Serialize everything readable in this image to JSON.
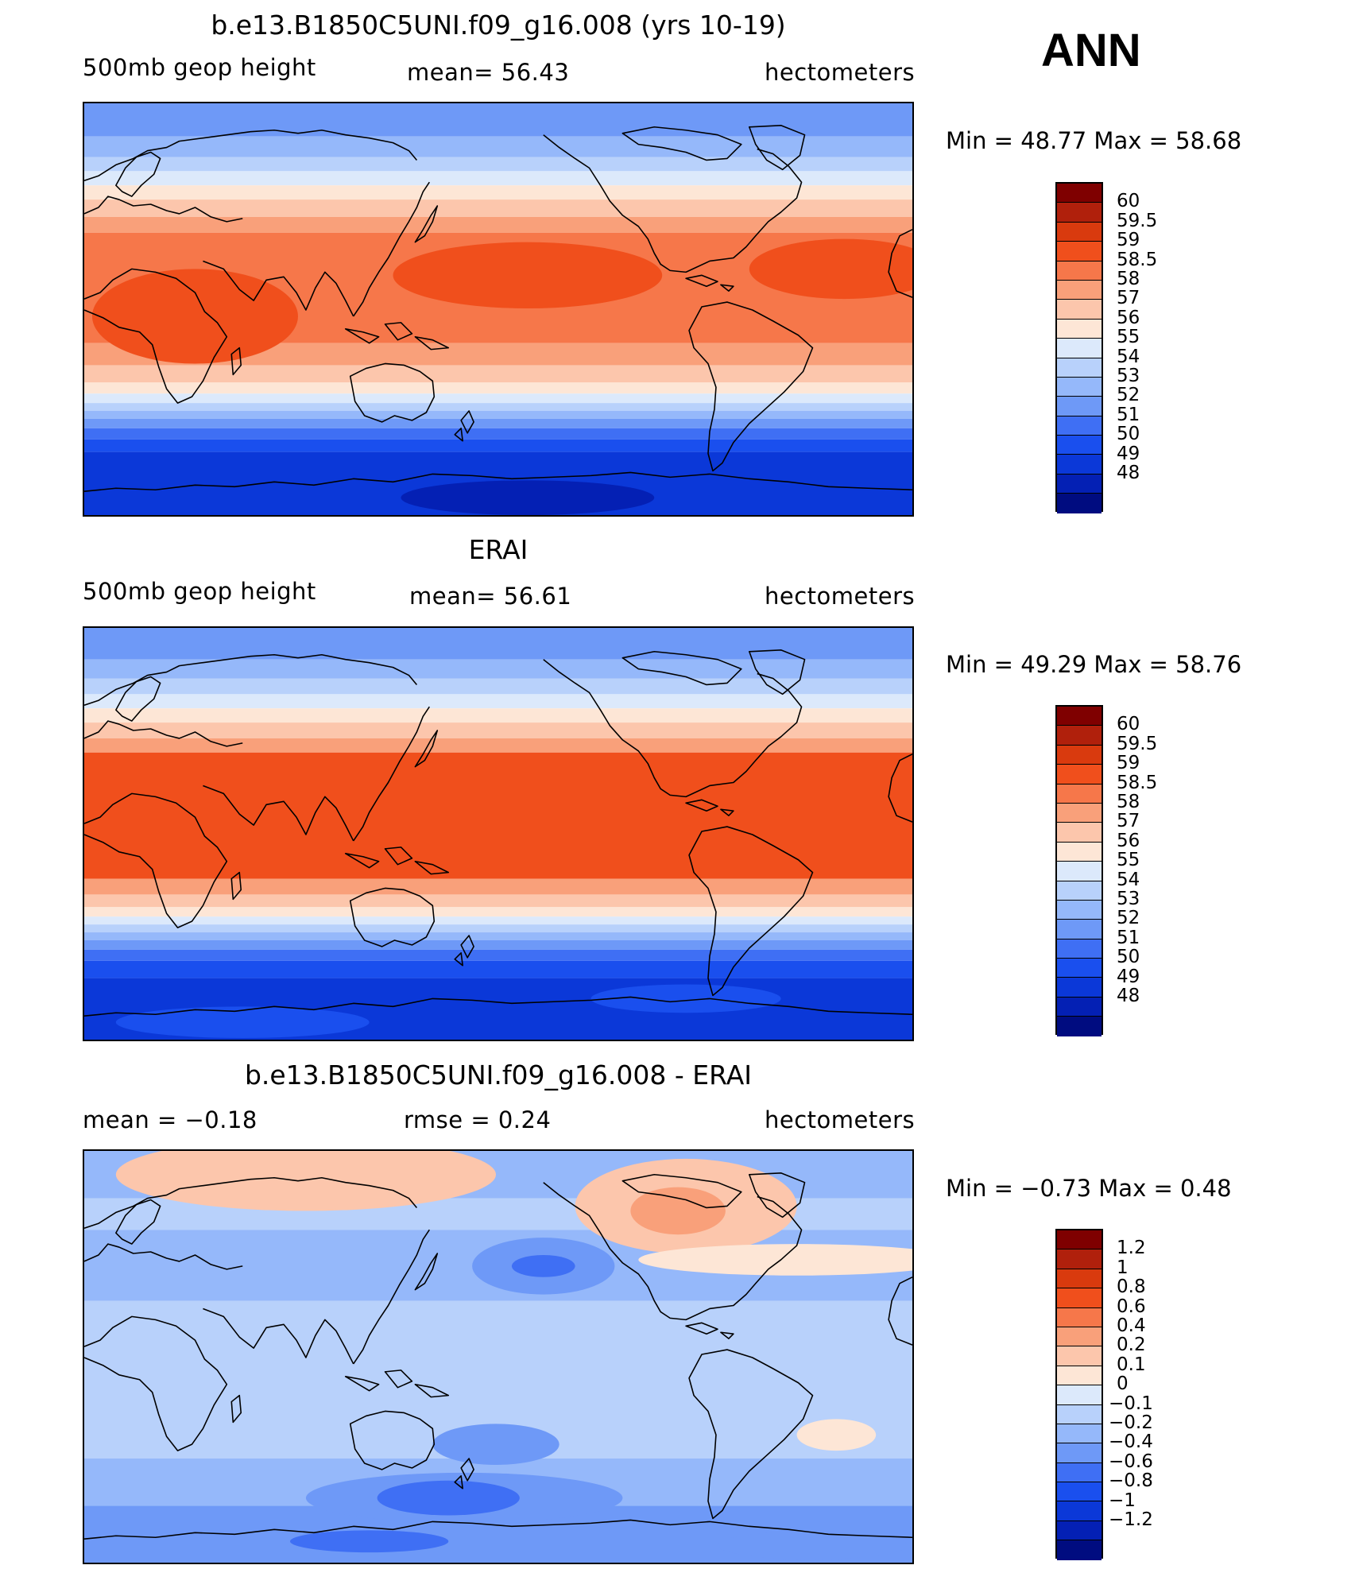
{
  "season": "ANN",
  "panels": [
    {
      "title": "b.e13.B1850C5UNI.f09_g16.008 (yrs 10-19)",
      "left_label": "500mb geop height",
      "center_label": "mean=   56.43",
      "units": "hectometers",
      "minmax": "Min =    48.77  Max =    58.68",
      "fill": "model"
    },
    {
      "title": "ERAI",
      "left_label": "500mb geop height",
      "center_label": "mean=   56.61",
      "units": "hectometers",
      "minmax": "Min =    49.29  Max =    58.76",
      "fill": "obs"
    },
    {
      "title": "b.e13.B1850C5UNI.f09_g16.008 - ERAI",
      "left_label": "mean =   −0.18",
      "center_label": "rmse =     0.24",
      "units": "hectometers",
      "minmax": "Min =    −0.73  Max =     0.48",
      "fill": "diff"
    }
  ],
  "colorbars": {
    "height": {
      "colors": [
        "#7f0000",
        "#b0200c",
        "#d93a0e",
        "#f04f1c",
        "#f6774a",
        "#f9a07a",
        "#fcc6ac",
        "#fde6d6",
        "#dce9fb",
        "#b8d1fb",
        "#95b8fa",
        "#6e99f7",
        "#3f6ff4",
        "#1a4fee",
        "#0b38d8",
        "#0420b4",
        "#000c80"
      ],
      "labels": [
        "60",
        "59.5",
        "59",
        "58.5",
        "58",
        "57",
        "56",
        "55",
        "54",
        "53",
        "52",
        "51",
        "50",
        "49",
        "48"
      ]
    },
    "diff": {
      "colors": [
        "#7f0000",
        "#b0200c",
        "#d93a0e",
        "#f04f1c",
        "#f6774a",
        "#f9a07a",
        "#fcc6ac",
        "#fde6d6",
        "#dce9fb",
        "#b8d1fb",
        "#95b8fa",
        "#6e99f7",
        "#3f6ff4",
        "#1a4fee",
        "#0b38d8",
        "#0420b4",
        "#000c80"
      ],
      "labels": [
        "1.2",
        "1",
        "0.8",
        "0.6",
        "0.4",
        "0.2",
        "0.1",
        "0",
        "−0.1",
        "−0.2",
        "−0.4",
        "−0.6",
        "−0.8",
        "−1",
        "−1.2"
      ]
    }
  }
}
